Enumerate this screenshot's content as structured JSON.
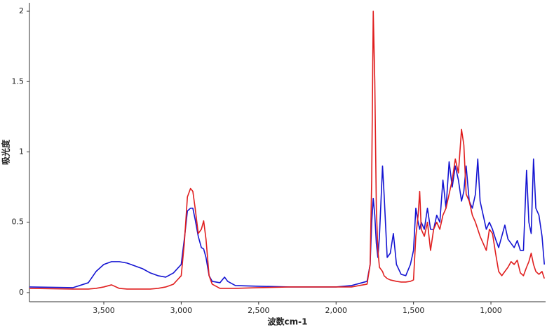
{
  "chart_data": {
    "type": "line",
    "x_label": "波数cm-1",
    "y_label": "吸光度",
    "xlim": [
      3980,
      647
    ],
    "ylim": [
      -0.065,
      2.06
    ],
    "xticks": [
      {
        "value": 3500,
        "label": "3,500"
      },
      {
        "value": 3000,
        "label": "3,000"
      },
      {
        "value": 2500,
        "label": "2,500"
      },
      {
        "value": 2000,
        "label": "2,000"
      },
      {
        "value": 1500,
        "label": "1,500"
      },
      {
        "value": 1000,
        "label": "1,000"
      }
    ],
    "yticks": [
      0,
      0.5,
      1,
      1.5,
      2
    ],
    "x": [
      3980,
      3700,
      3600,
      3550,
      3500,
      3450,
      3400,
      3350,
      3300,
      3250,
      3200,
      3150,
      3100,
      3050,
      3000,
      2980,
      2960,
      2940,
      2925,
      2910,
      2890,
      2870,
      2855,
      2840,
      2820,
      2800,
      2750,
      2720,
      2700,
      2650,
      2500,
      2300,
      2000,
      1900,
      1800,
      1780,
      1770,
      1760,
      1750,
      1740,
      1730,
      1720,
      1700,
      1690,
      1670,
      1650,
      1630,
      1610,
      1580,
      1550,
      1520,
      1500,
      1485,
      1470,
      1460,
      1450,
      1430,
      1410,
      1390,
      1370,
      1350,
      1330,
      1310,
      1290,
      1270,
      1250,
      1230,
      1210,
      1190,
      1175,
      1160,
      1140,
      1120,
      1100,
      1085,
      1070,
      1050,
      1030,
      1010,
      990,
      970,
      950,
      930,
      910,
      890,
      870,
      850,
      830,
      810,
      790,
      770,
      755,
      740,
      725,
      710,
      690,
      670,
      655
    ],
    "series": [
      {
        "color": "#1414d2",
        "values": [
          0.04,
          0.035,
          0.07,
          0.15,
          0.2,
          0.22,
          0.22,
          0.21,
          0.19,
          0.17,
          0.14,
          0.12,
          0.11,
          0.14,
          0.2,
          0.38,
          0.58,
          0.6,
          0.6,
          0.52,
          0.4,
          0.32,
          0.31,
          0.25,
          0.12,
          0.08,
          0.07,
          0.11,
          0.08,
          0.05,
          0.045,
          0.04,
          0.04,
          0.05,
          0.08,
          0.2,
          0.5,
          0.67,
          0.55,
          0.35,
          0.25,
          0.4,
          0.9,
          0.7,
          0.25,
          0.28,
          0.42,
          0.2,
          0.13,
          0.12,
          0.2,
          0.3,
          0.6,
          0.5,
          0.45,
          0.5,
          0.45,
          0.6,
          0.45,
          0.45,
          0.55,
          0.5,
          0.8,
          0.6,
          0.93,
          0.75,
          0.9,
          0.8,
          0.65,
          0.72,
          0.9,
          0.65,
          0.6,
          0.7,
          0.95,
          0.65,
          0.55,
          0.45,
          0.5,
          0.45,
          0.38,
          0.32,
          0.4,
          0.48,
          0.38,
          0.35,
          0.32,
          0.37,
          0.3,
          0.3,
          0.87,
          0.5,
          0.42,
          0.95,
          0.6,
          0.55,
          0.4,
          0.2
        ]
      },
      {
        "color": "#e01e1e",
        "values": [
          0.03,
          0.025,
          0.025,
          0.03,
          0.04,
          0.055,
          0.03,
          0.025,
          0.025,
          0.025,
          0.025,
          0.03,
          0.04,
          0.06,
          0.12,
          0.35,
          0.68,
          0.74,
          0.72,
          0.6,
          0.42,
          0.45,
          0.51,
          0.38,
          0.12,
          0.06,
          0.03,
          0.03,
          0.03,
          0.03,
          0.035,
          0.04,
          0.04,
          0.04,
          0.06,
          0.2,
          0.8,
          2.0,
          1.5,
          0.6,
          0.3,
          0.18,
          0.15,
          0.12,
          0.1,
          0.09,
          0.085,
          0.08,
          0.075,
          0.075,
          0.08,
          0.09,
          0.4,
          0.55,
          0.72,
          0.45,
          0.4,
          0.5,
          0.3,
          0.45,
          0.5,
          0.45,
          0.55,
          0.6,
          0.7,
          0.8,
          0.95,
          0.85,
          1.16,
          1.05,
          0.7,
          0.65,
          0.55,
          0.5,
          0.45,
          0.4,
          0.35,
          0.3,
          0.45,
          0.42,
          0.28,
          0.15,
          0.12,
          0.15,
          0.18,
          0.22,
          0.2,
          0.23,
          0.14,
          0.12,
          0.18,
          0.22,
          0.28,
          0.2,
          0.15,
          0.13,
          0.15,
          0.1
        ]
      }
    ]
  }
}
